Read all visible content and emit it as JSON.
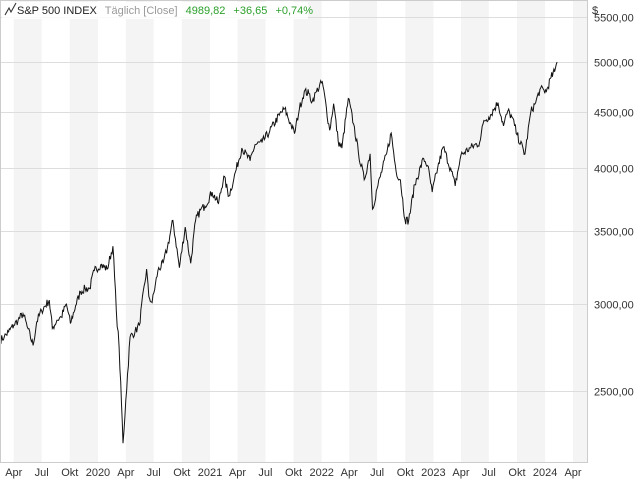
{
  "header": {
    "symbol": "S&P 500 INDEX",
    "interval": "Täglich [Close]",
    "price": "4989,82",
    "change": "+36,65",
    "change_pct": "+0,74%",
    "currency": "$"
  },
  "colors": {
    "up": "#2ca02c",
    "line": "#111111",
    "band": "#f4f4f4",
    "grid": "#dddddd",
    "muted": "#9a9a9a"
  },
  "chart_data": {
    "type": "line",
    "title": "S&P 500 INDEX",
    "xlabel": "",
    "ylabel": "",
    "y_scale": "log",
    "ylim": [
      2150,
      5700
    ],
    "xlim": [
      "2019-02-15",
      "2024-05-20"
    ],
    "grid": true,
    "y_ticks": [
      {
        "value": 2500,
        "label": "2500,00"
      },
      {
        "value": 3000,
        "label": "3000,00"
      },
      {
        "value": 3500,
        "label": "3500,00"
      },
      {
        "value": 4000,
        "label": "4000,00"
      },
      {
        "value": 4500,
        "label": "4500,00"
      },
      {
        "value": 5000,
        "label": "5000,00"
      },
      {
        "value": 5500,
        "label": "5500,00"
      }
    ],
    "x_ticks": [
      {
        "date": "2019-04-01",
        "label": "Apr"
      },
      {
        "date": "2019-07-01",
        "label": "Jul"
      },
      {
        "date": "2019-10-01",
        "label": "Okt"
      },
      {
        "date": "2020-01-01",
        "label": "2020"
      },
      {
        "date": "2020-04-01",
        "label": "Apr"
      },
      {
        "date": "2020-07-01",
        "label": "Jul"
      },
      {
        "date": "2020-10-01",
        "label": "Okt"
      },
      {
        "date": "2021-01-01",
        "label": "2021"
      },
      {
        "date": "2021-04-01",
        "label": "Apr"
      },
      {
        "date": "2021-07-01",
        "label": "Jul"
      },
      {
        "date": "2021-10-01",
        "label": "Okt"
      },
      {
        "date": "2022-01-01",
        "label": "2022"
      },
      {
        "date": "2022-04-01",
        "label": "Apr"
      },
      {
        "date": "2022-07-01",
        "label": "Jul"
      },
      {
        "date": "2022-10-01",
        "label": "Okt"
      },
      {
        "date": "2023-01-01",
        "label": "2023"
      },
      {
        "date": "2023-04-01",
        "label": "Apr"
      },
      {
        "date": "2023-07-01",
        "label": "Jul"
      },
      {
        "date": "2023-10-01",
        "label": "Okt"
      },
      {
        "date": "2024-01-01",
        "label": "2024"
      },
      {
        "date": "2024-04-01",
        "label": "Apr"
      }
    ],
    "series": [
      {
        "x": [
          "2019-02-15",
          "2019-03-01",
          "2019-03-15",
          "2019-04-01",
          "2019-04-15",
          "2019-05-01",
          "2019-05-15",
          "2019-06-03",
          "2019-06-15",
          "2019-07-01",
          "2019-07-26",
          "2019-08-05",
          "2019-08-20",
          "2019-09-03",
          "2019-09-20",
          "2019-10-03",
          "2019-10-20",
          "2019-11-05",
          "2019-11-20",
          "2019-12-05",
          "2019-12-20",
          "2020-01-10",
          "2020-01-31",
          "2020-02-19",
          "2020-03-01",
          "2020-03-10",
          "2020-03-23",
          "2020-04-01",
          "2020-04-15",
          "2020-05-01",
          "2020-05-15",
          "2020-06-08",
          "2020-06-15",
          "2020-06-26",
          "2020-07-15",
          "2020-08-01",
          "2020-08-15",
          "2020-09-02",
          "2020-09-23",
          "2020-10-12",
          "2020-10-30",
          "2020-11-15",
          "2020-12-01",
          "2020-12-15",
          "2021-01-08",
          "2021-01-29",
          "2021-02-15",
          "2021-03-04",
          "2021-03-20",
          "2021-04-15",
          "2021-05-12",
          "2021-05-28",
          "2021-06-20",
          "2021-07-15",
          "2021-08-15",
          "2021-09-02",
          "2021-09-20",
          "2021-10-04",
          "2021-10-20",
          "2021-11-05",
          "2021-11-20",
          "2021-12-01",
          "2021-12-15",
          "2022-01-03",
          "2022-01-27",
          "2022-02-09",
          "2022-02-24",
          "2022-03-08",
          "2022-03-29",
          "2022-04-15",
          "2022-05-01",
          "2022-05-20",
          "2022-06-08",
          "2022-06-16",
          "2022-07-01",
          "2022-08-01",
          "2022-08-16",
          "2022-09-01",
          "2022-09-15",
          "2022-09-30",
          "2022-10-12",
          "2022-11-01",
          "2022-11-30",
          "2022-12-13",
          "2022-12-28",
          "2023-01-15",
          "2023-02-02",
          "2023-03-01",
          "2023-03-13",
          "2023-04-01",
          "2023-05-01",
          "2023-06-01",
          "2023-06-15",
          "2023-07-01",
          "2023-07-31",
          "2023-08-18",
          "2023-09-01",
          "2023-09-15",
          "2023-10-01",
          "2023-10-27",
          "2023-11-15",
          "2023-12-01",
          "2023-12-15",
          "2024-01-05",
          "2024-01-20",
          "2024-02-01",
          "2024-02-09"
        ],
        "y": [
          2780,
          2800,
          2830,
          2870,
          2900,
          2940,
          2860,
          2750,
          2890,
          2960,
          3025,
          2850,
          2900,
          2920,
          3000,
          2880,
          2990,
          3080,
          3100,
          3100,
          3220,
          3260,
          3230,
          3390,
          2960,
          2740,
          2237,
          2450,
          2800,
          2830,
          2870,
          3230,
          3050,
          3010,
          3220,
          3270,
          3380,
          3580,
          3240,
          3530,
          3270,
          3580,
          3660,
          3690,
          3800,
          3710,
          3930,
          3770,
          3910,
          4170,
          4060,
          4200,
          4220,
          4320,
          4470,
          4530,
          4400,
          4300,
          4530,
          4700,
          4680,
          4600,
          4700,
          4796,
          4330,
          4580,
          4230,
          4170,
          4630,
          4390,
          4130,
          3900,
          4120,
          3666,
          3830,
          4120,
          4305,
          3970,
          3900,
          3585,
          3577,
          3860,
          4080,
          4020,
          3800,
          4000,
          4180,
          3970,
          3850,
          4110,
          4170,
          4220,
          4420,
          4450,
          4590,
          4370,
          4510,
          4450,
          4290,
          4117,
          4500,
          4590,
          4720,
          4700,
          4840,
          4900,
          5000
        ]
      }
    ]
  }
}
